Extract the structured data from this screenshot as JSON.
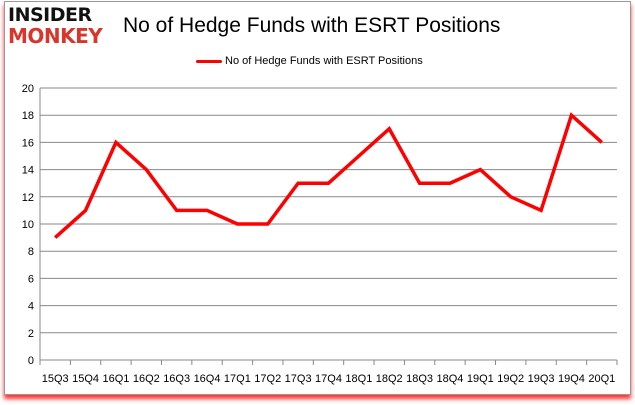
{
  "logo": {
    "line1": "INSIDER",
    "line2": "MONKEY"
  },
  "chart_data": {
    "type": "line",
    "title": "No of Hedge Funds with ESRT Positions",
    "legend": {
      "entries": [
        "No of Hedge Funds with ESRT Positions"
      ],
      "placement": "top"
    },
    "categories": [
      "15Q3",
      "15Q4",
      "16Q1",
      "16Q2",
      "16Q3",
      "16Q4",
      "17Q1",
      "17Q2",
      "17Q3",
      "17Q4",
      "18Q1",
      "18Q2",
      "18Q3",
      "18Q4",
      "19Q1",
      "19Q2",
      "19Q3",
      "19Q4",
      "20Q1"
    ],
    "series": [
      {
        "name": "No of Hedge Funds with ESRT Positions",
        "color": "#ff0000",
        "values": [
          9,
          11,
          16,
          14,
          11,
          11,
          10,
          10,
          13,
          13,
          15,
          17,
          13,
          13,
          14,
          12,
          11,
          18,
          16
        ]
      }
    ],
    "ylim": [
      0,
      20
    ],
    "yticks": [
      0,
      2,
      4,
      6,
      8,
      10,
      12,
      14,
      16,
      18,
      20
    ],
    "grid": true,
    "xlabel": "",
    "ylabel": ""
  }
}
